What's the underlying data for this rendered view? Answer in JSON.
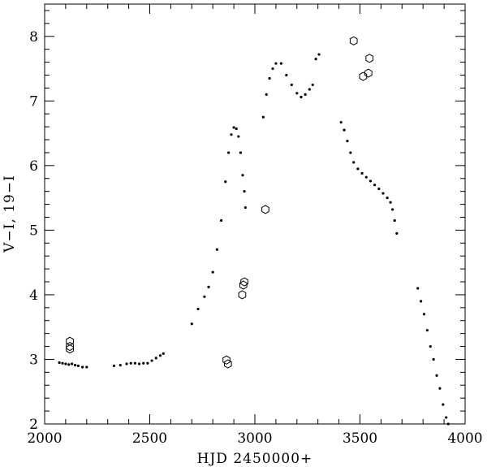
{
  "chart_data": {
    "type": "scatter",
    "xlabel": "HJD 2450000+",
    "ylabel": "V−I, 19−I",
    "xlim": [
      2000,
      4000
    ],
    "ylim": [
      2,
      8.5
    ],
    "x_ticks": [
      2000,
      2500,
      3000,
      3500,
      4000
    ],
    "y_ticks": [
      2,
      3,
      4,
      5,
      6,
      7,
      8
    ],
    "x_minor_step": 100,
    "y_minor_step": 0.2,
    "grid": false,
    "legend": "none",
    "series": [
      {
        "marker": "dot",
        "color": "#000000",
        "values": [
          [
            2070,
            2.95
          ],
          [
            2085,
            2.94
          ],
          [
            2100,
            2.93
          ],
          [
            2115,
            2.92
          ],
          [
            2130,
            2.93
          ],
          [
            2145,
            2.91
          ],
          [
            2160,
            2.9
          ],
          [
            2180,
            2.88
          ],
          [
            2200,
            2.88
          ],
          [
            2330,
            2.9
          ],
          [
            2360,
            2.91
          ],
          [
            2390,
            2.93
          ],
          [
            2410,
            2.94
          ],
          [
            2430,
            2.94
          ],
          [
            2450,
            2.93
          ],
          [
            2470,
            2.94
          ],
          [
            2490,
            2.94
          ],
          [
            2510,
            2.98
          ],
          [
            2530,
            3.02
          ],
          [
            2550,
            3.06
          ],
          [
            2565,
            3.09
          ],
          [
            2700,
            3.55
          ],
          [
            2730,
            3.78
          ],
          [
            2760,
            3.97
          ],
          [
            2780,
            4.12
          ],
          [
            2800,
            4.35
          ],
          [
            2820,
            4.7
          ],
          [
            2840,
            5.15
          ],
          [
            2860,
            5.75
          ],
          [
            2875,
            6.2
          ],
          [
            2888,
            6.48
          ],
          [
            2900,
            6.59
          ],
          [
            2912,
            6.57
          ],
          [
            2922,
            6.45
          ],
          [
            2932,
            6.2
          ],
          [
            2942,
            5.85
          ],
          [
            2950,
            5.6
          ],
          [
            2955,
            5.35
          ],
          [
            3040,
            6.75
          ],
          [
            3055,
            7.1
          ],
          [
            3070,
            7.35
          ],
          [
            3085,
            7.5
          ],
          [
            3100,
            7.58
          ],
          [
            3125,
            7.58
          ],
          [
            3150,
            7.4
          ],
          [
            3175,
            7.25
          ],
          [
            3200,
            7.12
          ],
          [
            3220,
            7.06
          ],
          [
            3240,
            7.1
          ],
          [
            3260,
            7.18
          ],
          [
            3275,
            7.25
          ],
          [
            3290,
            7.65
          ],
          [
            3305,
            7.72
          ],
          [
            3410,
            6.67
          ],
          [
            3425,
            6.55
          ],
          [
            3440,
            6.38
          ],
          [
            3455,
            6.2
          ],
          [
            3470,
            6.05
          ],
          [
            3490,
            5.95
          ],
          [
            3510,
            5.88
          ],
          [
            3530,
            5.82
          ],
          [
            3550,
            5.76
          ],
          [
            3570,
            5.7
          ],
          [
            3590,
            5.64
          ],
          [
            3610,
            5.57
          ],
          [
            3630,
            5.5
          ],
          [
            3645,
            5.43
          ],
          [
            3655,
            5.32
          ],
          [
            3665,
            5.15
          ],
          [
            3675,
            4.95
          ],
          [
            3775,
            4.1
          ],
          [
            3790,
            3.9
          ],
          [
            3805,
            3.7
          ],
          [
            3820,
            3.45
          ],
          [
            3835,
            3.2
          ],
          [
            3850,
            3.0
          ],
          [
            3865,
            2.75
          ],
          [
            3880,
            2.55
          ],
          [
            3895,
            2.3
          ],
          [
            3910,
            2.1
          ],
          [
            3920,
            2.0
          ]
        ]
      },
      {
        "marker": "hexagon",
        "color": "#000000",
        "values": [
          [
            2120,
            3.28
          ],
          [
            2120,
            3.2
          ],
          [
            2120,
            3.16
          ],
          [
            2865,
            2.99
          ],
          [
            2872,
            2.93
          ],
          [
            2940,
            4.0
          ],
          [
            2945,
            4.15
          ],
          [
            2950,
            4.2
          ],
          [
            3050,
            5.32
          ],
          [
            3470,
            7.93
          ],
          [
            3515,
            7.38
          ],
          [
            3540,
            7.43
          ],
          [
            3545,
            7.66
          ]
        ]
      }
    ]
  }
}
